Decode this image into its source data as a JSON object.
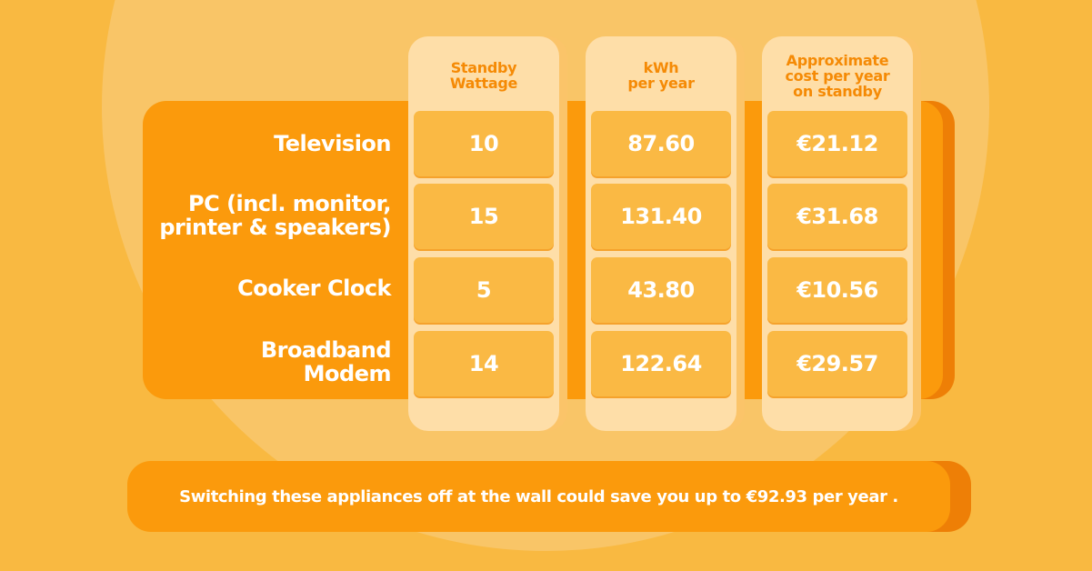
{
  "columns": [
    {
      "header": [
        "Standby",
        "Wattage"
      ]
    },
    {
      "header": [
        "kWh",
        "per year"
      ]
    },
    {
      "header": [
        "Approximate",
        "cost per year",
        "on standby"
      ]
    }
  ],
  "rows": [
    {
      "label": [
        "Television"
      ],
      "values": [
        "10",
        "87.60",
        "€21.12"
      ]
    },
    {
      "label": [
        "PC (incl. monitor,",
        "printer & speakers)"
      ],
      "values": [
        "15",
        "131.40",
        "€31.68"
      ]
    },
    {
      "label": [
        "Cooker Clock"
      ],
      "values": [
        "5",
        "43.80",
        "€10.56"
      ]
    },
    {
      "label": [
        "Broadband",
        "Modem"
      ],
      "values": [
        "14",
        "122.64",
        "€29.57"
      ]
    }
  ],
  "footer": {
    "text": "Switching these appliances off at the wall could save you up to €92.93 per year ."
  },
  "colors": {
    "background": "#F9B941",
    "circle": "#F9C567",
    "band": "#FB9A0C",
    "column": "#FEDEA8",
    "cell": "#FAB944",
    "header_text": "#F58A05",
    "text": "#FFFFFF"
  }
}
